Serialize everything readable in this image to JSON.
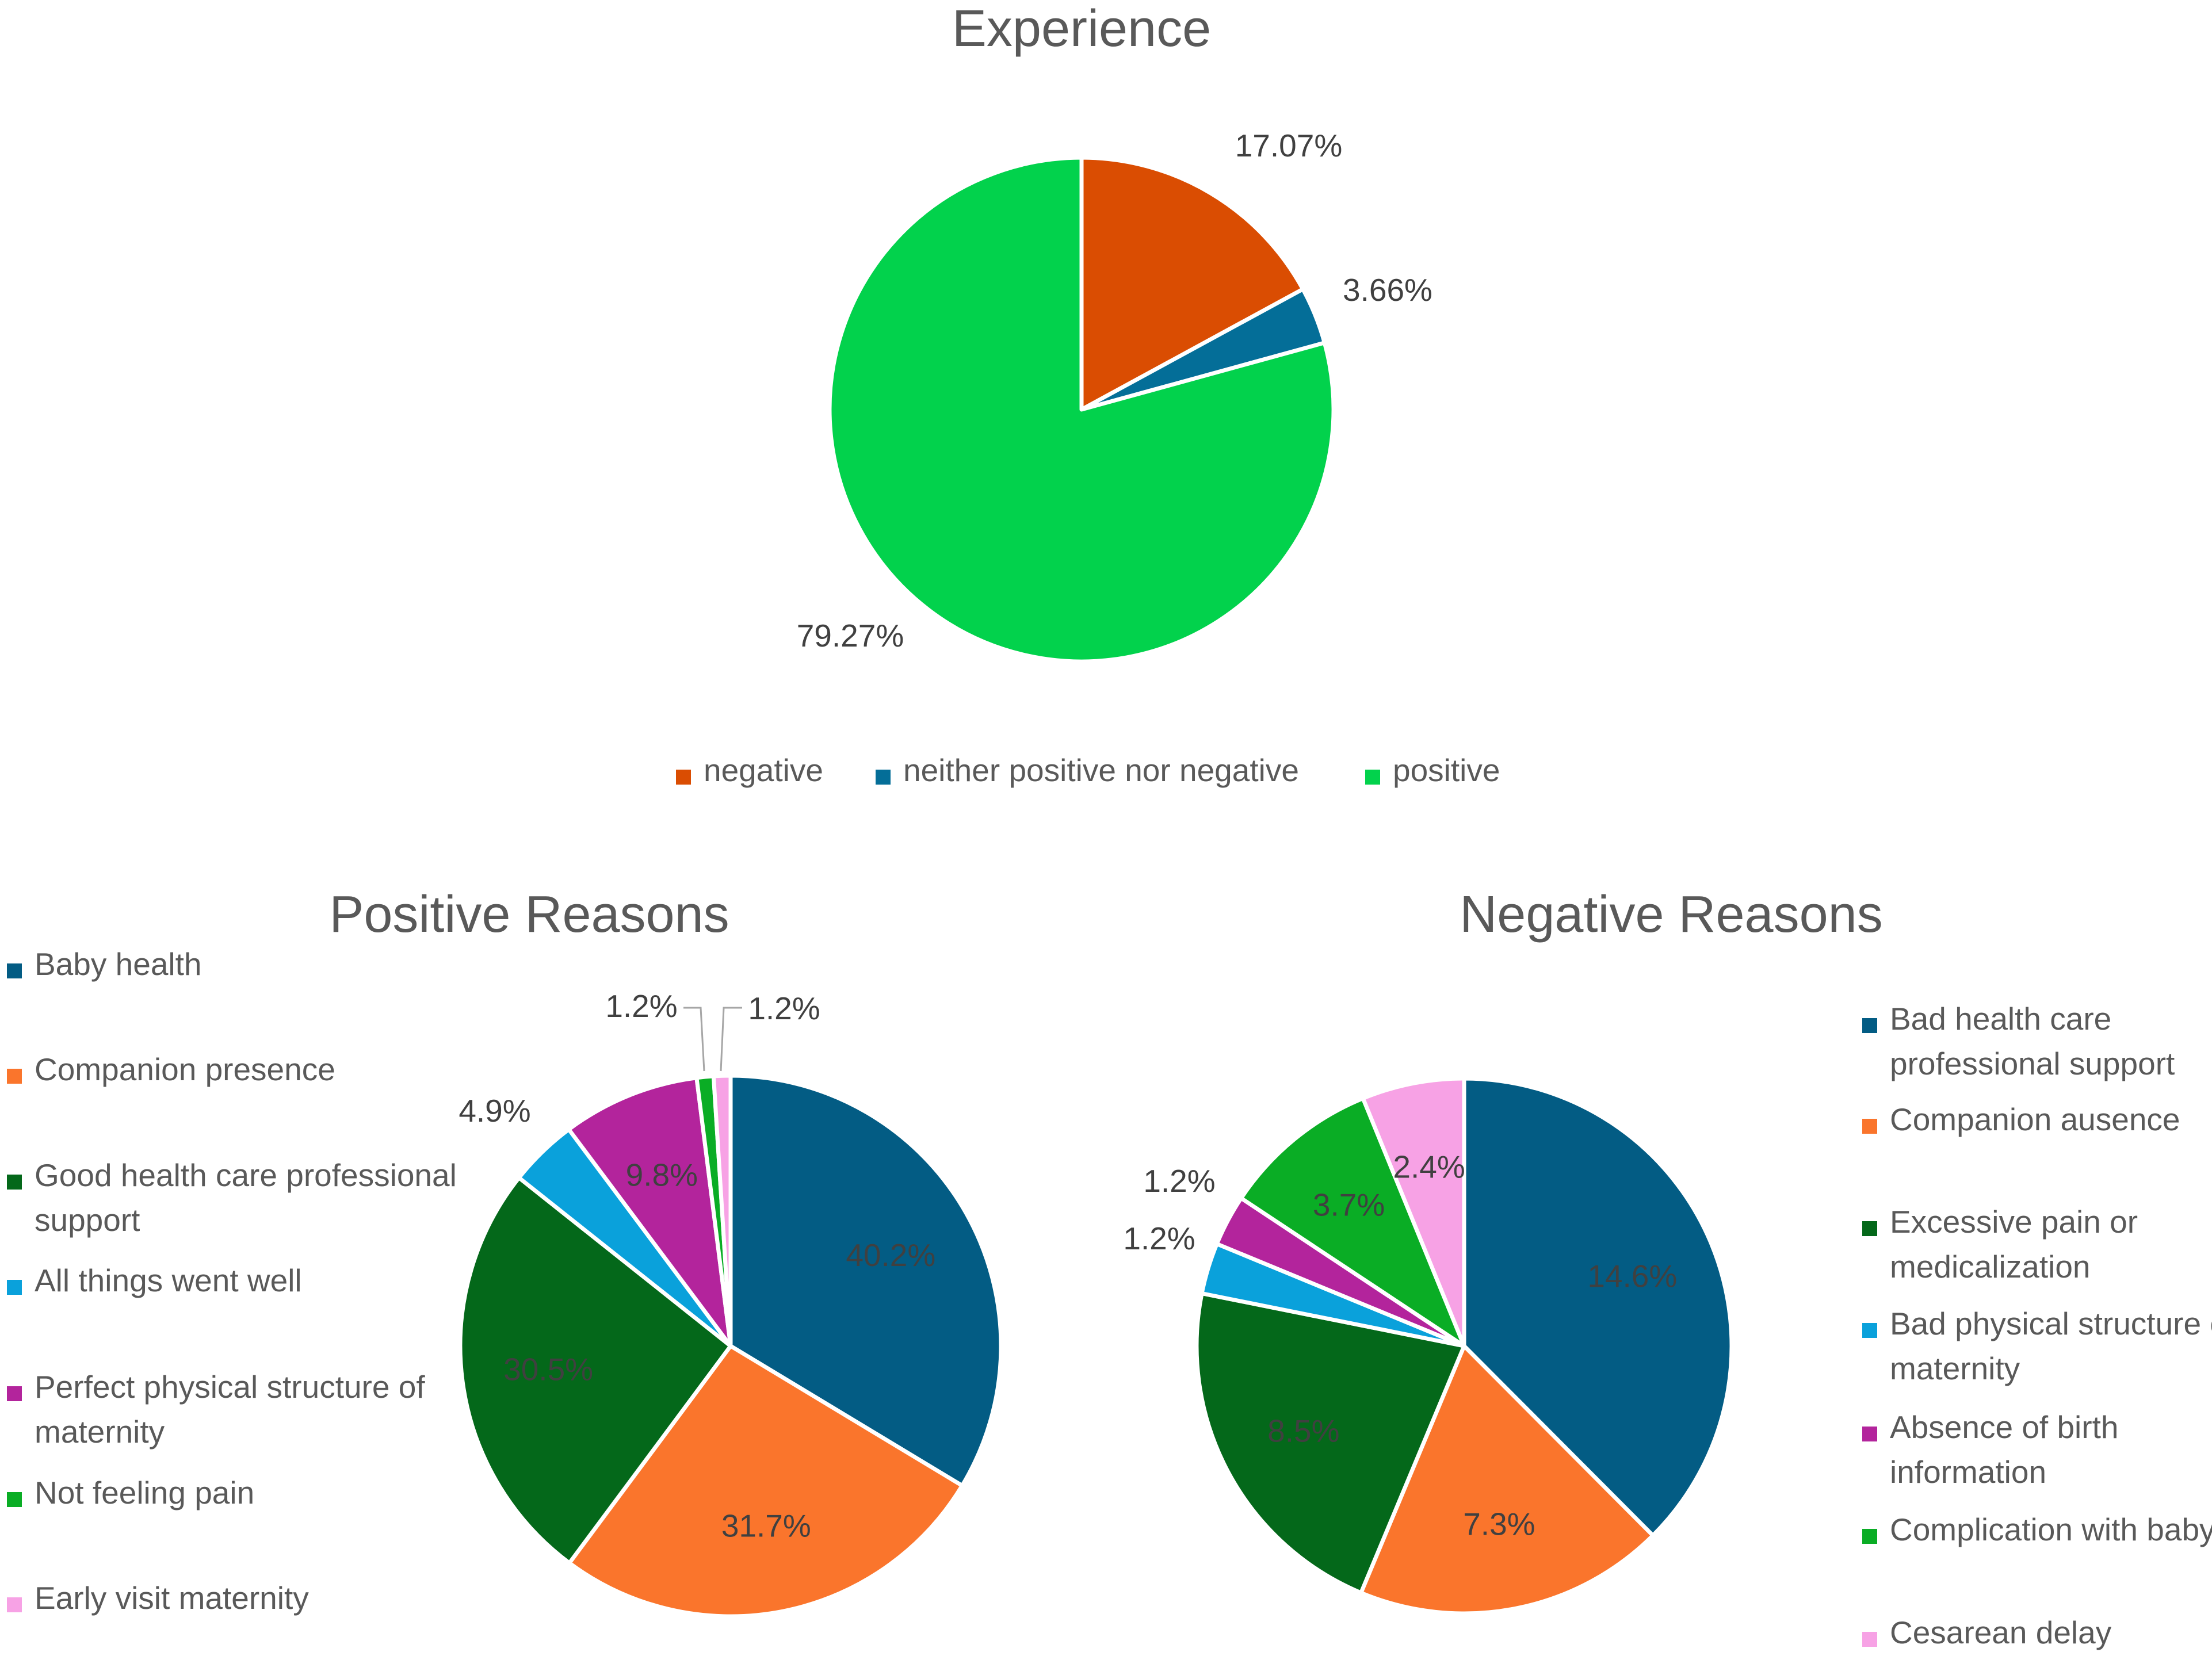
{
  "chart_data": [
    {
      "id": "experience",
      "type": "pie",
      "title": "Experience",
      "legend_position": "bottom",
      "slices": [
        {
          "label": "negative",
          "value": 17.07,
          "data_label": "17.07%",
          "color": "#DA4D02"
        },
        {
          "label": "neither positive nor negative",
          "value": 3.66,
          "data_label": "3.66%",
          "color": "#046E98"
        },
        {
          "label": "positive",
          "value": 79.27,
          "data_label": "79.27%",
          "color": "#02D24C"
        }
      ]
    },
    {
      "id": "positive-reasons",
      "type": "pie",
      "title": "Positive Reasons",
      "legend_position": "left",
      "slices": [
        {
          "label": "Baby health",
          "value": 40.2,
          "data_label": "40.2%",
          "color": "#035C84"
        },
        {
          "label": "Companion presence",
          "value": 31.7,
          "data_label": "31.7%",
          "color": "#FA752C"
        },
        {
          "label": "Good health care professional support",
          "value": 30.5,
          "data_label": "30.5%",
          "color": "#04681A"
        },
        {
          "label": "All things went well",
          "value": 4.9,
          "data_label": "4.9%",
          "color": "#0AA1DB"
        },
        {
          "label": "Perfect physical structure of maternity",
          "value": 9.8,
          "data_label": "9.8%",
          "color": "#B3249C"
        },
        {
          "label": "Not feeling pain",
          "value": 1.2,
          "data_label": "1.2%",
          "color": "#0AAD25"
        },
        {
          "label": "Early visit maternity",
          "value": 1.2,
          "data_label": "1.2%",
          "color": "#F7A2E5"
        }
      ]
    },
    {
      "id": "negative-reasons",
      "type": "pie",
      "title": "Negative Reasons",
      "legend_position": "right",
      "slices": [
        {
          "label": "Bad health care professional support",
          "value": 14.6,
          "data_label": "14.6%",
          "color": "#035C84"
        },
        {
          "label": "Companion ausence",
          "value": 7.3,
          "data_label": "7.3%",
          "color": "#FA752C"
        },
        {
          "label": "Excessive pain or medicalization",
          "value": 8.5,
          "data_label": "8.5%",
          "color": "#04681A"
        },
        {
          "label": "Bad physical structure of maternity",
          "value": 1.2,
          "data_label": "1.2%",
          "color": "#0AA1DB"
        },
        {
          "label": "Absence of birth information",
          "value": 1.2,
          "data_label": "1.2%",
          "color": "#B3249C"
        },
        {
          "label": "Complication with baby",
          "value": 3.7,
          "data_label": "3.7%",
          "color": "#0AAD25"
        },
        {
          "label": "Cesarean delay",
          "value": 2.4,
          "data_label": "2.4%",
          "color": "#F7A2E5"
        }
      ]
    }
  ]
}
